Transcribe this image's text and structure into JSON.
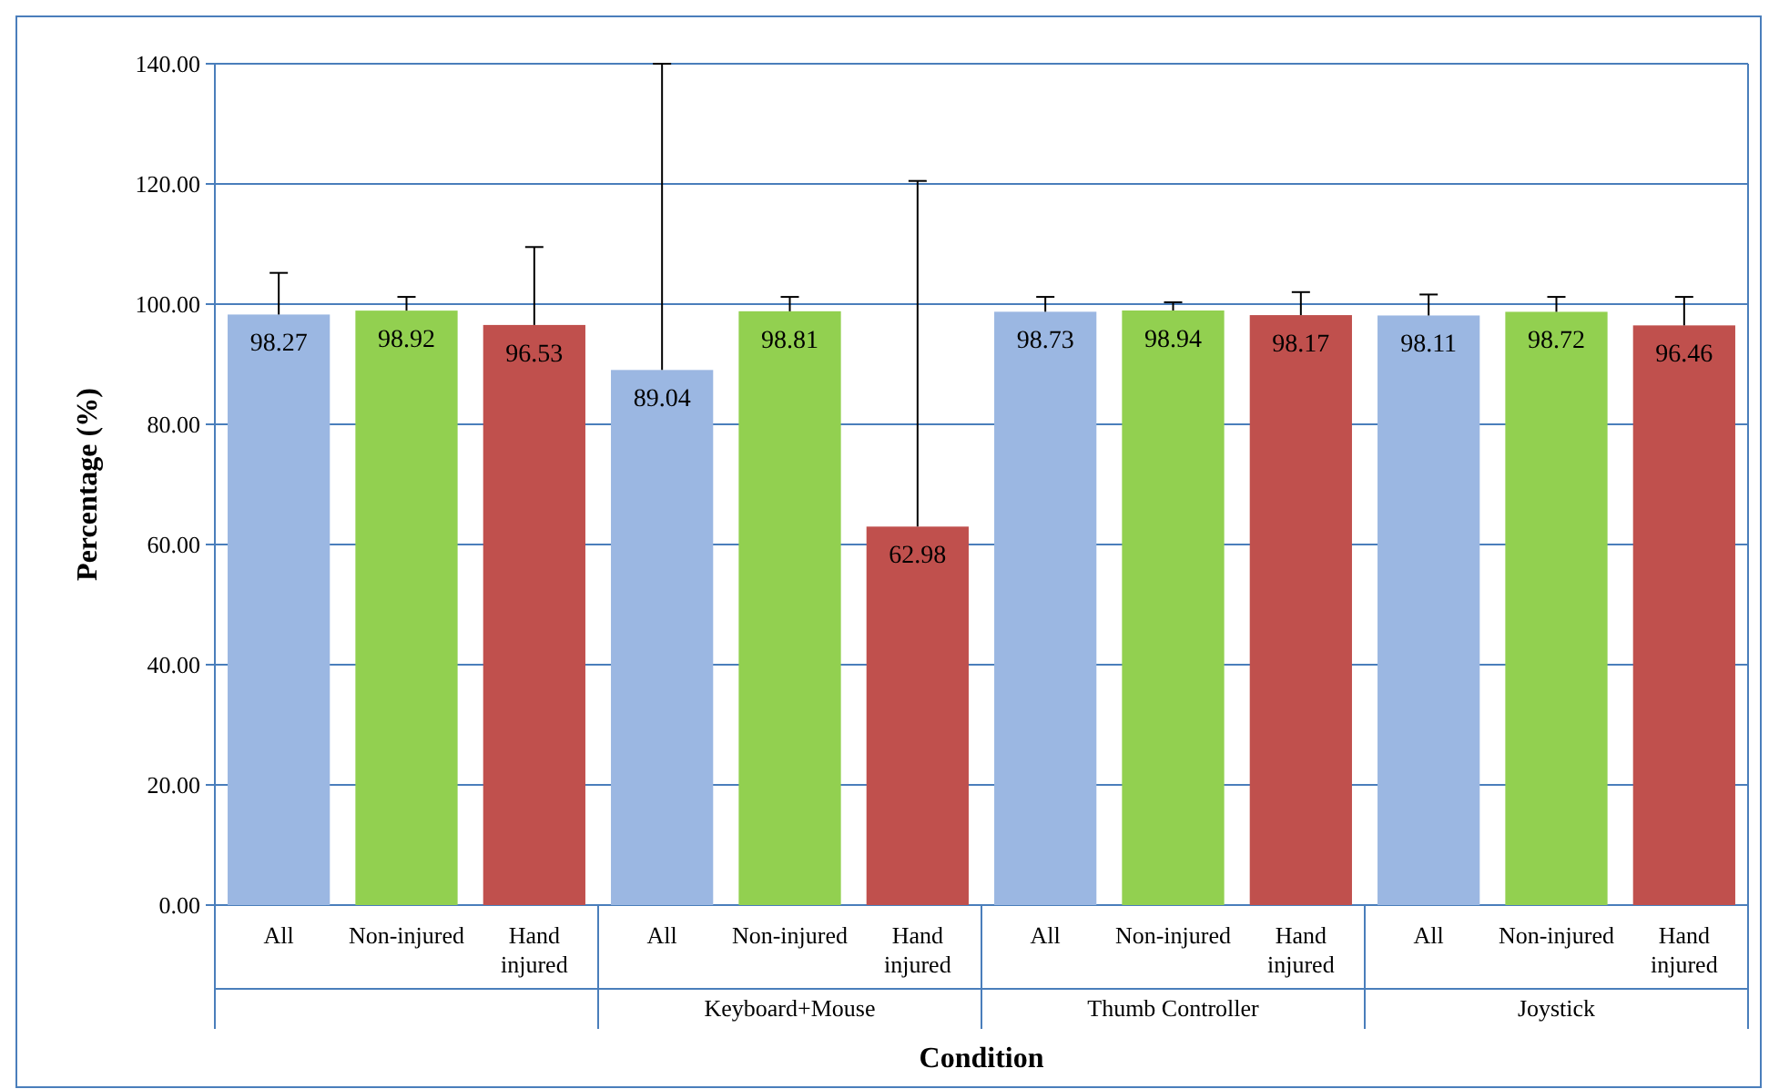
{
  "chart_data": {
    "type": "bar",
    "xlabel": "Condition",
    "ylabel": "Percentage (%)",
    "categories": [
      null,
      "Keyboard+Mouse",
      "Thumb Controller",
      "Joystick"
    ],
    "series": [
      {
        "name": "All",
        "color": "#9bb7e2",
        "values": [
          98.27,
          89.04,
          98.73,
          98.11
        ],
        "errors": [
          [
            98.27,
            105.2
          ],
          [
            89.04,
            140
          ],
          [
            98.73,
            101.2
          ],
          [
            98.11,
            101.6
          ]
        ]
      },
      {
        "name": "Non-injured",
        "color": "#92d050",
        "values": [
          98.92,
          98.81,
          98.94,
          98.72
        ],
        "errors": [
          [
            98.92,
            101.2
          ],
          [
            98.81,
            101.2
          ],
          [
            98.94,
            100.3
          ],
          [
            98.72,
            101.2
          ]
        ]
      },
      {
        "name": "Hand injured",
        "color": "#c0504d",
        "values": [
          96.53,
          62.98,
          98.17,
          96.46
        ],
        "errors": [
          [
            96.53,
            109.5
          ],
          [
            62.98,
            120.5
          ],
          [
            98.17,
            102
          ],
          [
            96.46,
            101.2
          ]
        ]
      }
    ],
    "ylim": [
      0,
      140
    ],
    "yticks": [
      {
        "value": 0,
        "label": "0.00"
      },
      {
        "value": 20,
        "label": "20.00"
      },
      {
        "value": 40,
        "label": "40.00"
      },
      {
        "value": 60,
        "label": "60.00"
      },
      {
        "value": 80,
        "label": "80.00"
      },
      {
        "value": 100,
        "label": "100.00"
      },
      {
        "value": 120,
        "label": "120.00"
      },
      {
        "value": 140,
        "label": "140.00"
      }
    ],
    "grid": "y",
    "data_labels": true
  }
}
